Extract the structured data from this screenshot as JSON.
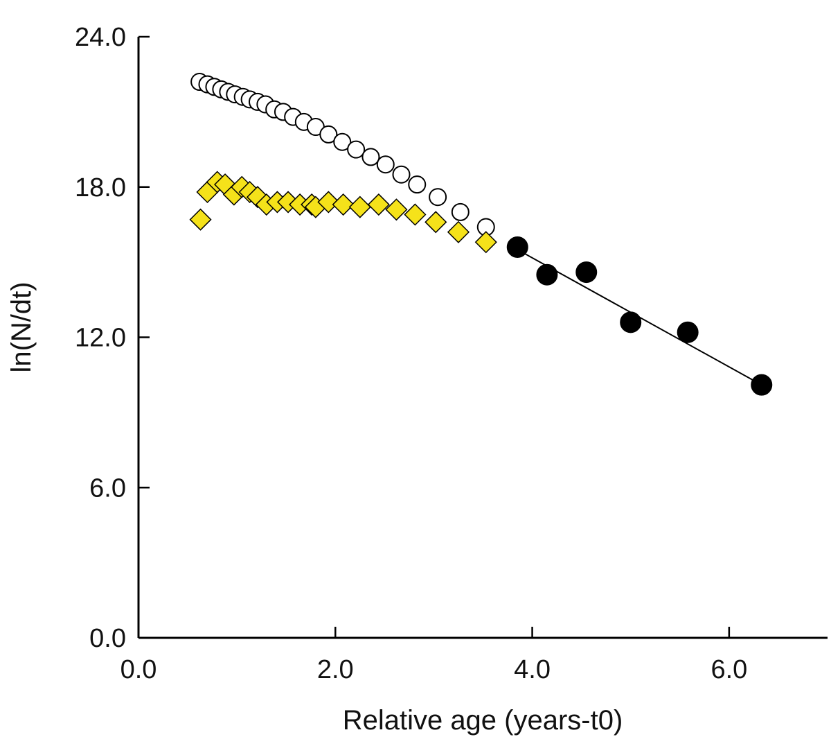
{
  "chart_data": {
    "type": "scatter",
    "title": "",
    "xlabel": "Relative age (years-t0)",
    "ylabel": "ln(N/dt)",
    "xlim": [
      0,
      7.0
    ],
    "ylim": [
      0,
      24
    ],
    "xticks": [
      "0.0",
      "2.0",
      "4.0",
      "6.0"
    ],
    "yticks": [
      "0.0",
      "6.0",
      "12.0",
      "18.0",
      "24.0"
    ],
    "grid": false,
    "colors": {
      "open": "#ffffff",
      "yellow": "#f5e21a",
      "black": "#000000",
      "axis": "#000000"
    },
    "series": [
      {
        "marker": "open-circle",
        "x": [
          0.62,
          0.7,
          0.77,
          0.84,
          0.91,
          0.98,
          1.06,
          1.13,
          1.21,
          1.29,
          1.38,
          1.47,
          1.57,
          1.68,
          1.8,
          1.93,
          2.07,
          2.21,
          2.36,
          2.51,
          2.67,
          2.83,
          3.04,
          3.27,
          3.53
        ],
        "y": [
          22.2,
          22.1,
          22.0,
          21.9,
          21.8,
          21.7,
          21.6,
          21.5,
          21.4,
          21.3,
          21.1,
          21.0,
          20.8,
          20.6,
          20.4,
          20.1,
          19.8,
          19.5,
          19.2,
          18.9,
          18.5,
          18.1,
          17.6,
          17.0,
          16.4
        ]
      },
      {
        "marker": "yellow-diamond",
        "x": [
          0.63,
          0.7,
          0.8,
          0.88,
          0.97,
          1.05,
          1.13,
          1.21,
          1.3,
          1.41,
          1.52,
          1.64,
          1.76,
          1.8,
          1.93,
          2.08,
          2.25,
          2.44,
          2.62,
          2.81,
          3.02,
          3.25,
          3.53
        ],
        "y": [
          16.7,
          17.8,
          18.2,
          18.1,
          17.7,
          18.0,
          17.8,
          17.6,
          17.3,
          17.4,
          17.4,
          17.3,
          17.3,
          17.2,
          17.4,
          17.3,
          17.2,
          17.3,
          17.1,
          16.9,
          16.6,
          16.2,
          15.8
        ]
      },
      {
        "marker": "black-circle",
        "x": [
          3.85,
          4.15,
          4.55,
          5.0,
          5.58,
          6.33
        ],
        "y": [
          15.6,
          14.5,
          14.6,
          12.6,
          12.2,
          10.1
        ]
      }
    ],
    "trendline": {
      "x": [
        3.85,
        6.33
      ],
      "y": [
        15.5,
        10.1
      ]
    }
  }
}
